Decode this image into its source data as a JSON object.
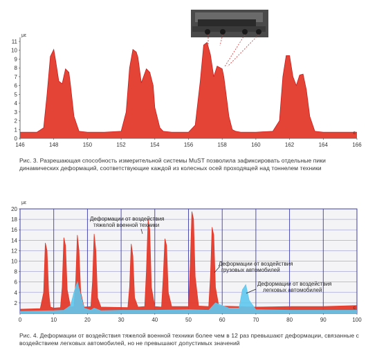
{
  "chart_data": [
    {
      "type": "area",
      "unit": "με",
      "x_unit": "c",
      "ylim": [
        0,
        11
      ],
      "xlim": [
        146,
        166
      ],
      "yticks": [
        0,
        1,
        2,
        3,
        4,
        5,
        6,
        7,
        8,
        9,
        10,
        11
      ],
      "xticks": [
        146,
        148,
        150,
        152,
        154,
        156,
        158,
        160,
        162,
        164,
        166
      ],
      "grid": false,
      "fill_color": "#e23a2b",
      "line_color": "#c81e1e",
      "series": [
        {
          "x": [
            146,
            147,
            147.4,
            147.6,
            147.8,
            148,
            148.1,
            148.3,
            148.5,
            148.7,
            148.9,
            149.0,
            149.2,
            149.5,
            150,
            151,
            152,
            152.3,
            152.5,
            152.7,
            152.9,
            153.0,
            153.2,
            153.5,
            153.7,
            153.9,
            154,
            154.3,
            154.5,
            155,
            156,
            156.4,
            156.7,
            156.9,
            157.1,
            157.3,
            157.5,
            157.7,
            158,
            158.1,
            158.3,
            158.4,
            158.6,
            158.8,
            159.1,
            159.4,
            160,
            161,
            161.4,
            161.6,
            161.8,
            162.0,
            162.2,
            162.4,
            162.6,
            162.8,
            163.0,
            163.2,
            163.5,
            164,
            166
          ],
          "values": [
            0.7,
            0.7,
            1.2,
            5.0,
            9.3,
            10.1,
            9.0,
            6.5,
            6.2,
            7.9,
            7.5,
            6.0,
            2.5,
            0.8,
            0.7,
            0.7,
            0.8,
            3.0,
            8.0,
            10.1,
            9.8,
            9.2,
            6.3,
            7.9,
            7.5,
            6.0,
            3.5,
            1.2,
            0.8,
            0.7,
            0.7,
            1.5,
            6.5,
            10.6,
            10.9,
            9.5,
            7.0,
            8.2,
            7.9,
            7.0,
            4.0,
            2.5,
            1.0,
            0.8,
            0.7,
            0.7,
            0.7,
            0.8,
            2.0,
            7.0,
            9.4,
            9.4,
            7.0,
            6.0,
            7.2,
            7.3,
            5.5,
            2.5,
            0.8,
            0.7,
            0.7
          ]
        }
      ]
    },
    {
      "type": "area",
      "unit": "με",
      "x_unit": "c",
      "ylim": [
        0,
        20
      ],
      "xlim": [
        0,
        100
      ],
      "yticks": [
        2,
        4,
        6,
        8,
        10,
        12,
        14,
        16,
        18,
        20
      ],
      "xticks": [
        0,
        10,
        20,
        30,
        40,
        50,
        60,
        70,
        80,
        90,
        100
      ],
      "grid": true,
      "grid_color": "#3a3aa8",
      "annotations": [
        "Деформации от воздействия тяжелой военной техники",
        "Деформации от воздействия грузовых автомобилей",
        "Деформации от воздействия легковых автомобилей"
      ],
      "series": [
        {
          "color": "#e23a2b",
          "x": [
            0,
            6,
            7,
            7.5,
            8,
            8.5,
            9,
            10,
            12,
            12.5,
            13,
            13.5,
            14,
            15,
            16,
            16.5,
            17,
            17.5,
            18,
            19,
            21,
            21.5,
            22,
            22.5,
            23,
            24,
            32,
            32.5,
            33,
            33.5,
            34,
            35,
            37,
            37.5,
            38,
            38.5,
            39,
            40,
            42,
            42.5,
            43,
            43.5,
            44,
            45,
            50,
            50.5,
            51,
            51.5,
            52,
            53,
            56,
            56.5,
            57,
            57.5,
            58,
            59,
            70,
            80,
            90,
            100
          ],
          "values": [
            0.8,
            0.9,
            4,
            13.5,
            12,
            4,
            1.2,
            1.0,
            1.1,
            5,
            14.5,
            13,
            4.5,
            1.2,
            1.3,
            6,
            15.0,
            12,
            4,
            1.2,
            1.3,
            6,
            15.2,
            12,
            3,
            1.2,
            1.1,
            5,
            13.3,
            11,
            3,
            1.2,
            1.3,
            8,
            18.0,
            16,
            5,
            1.3,
            1.2,
            7,
            14.3,
            13,
            4,
            1.3,
            1.3,
            9,
            19.5,
            18,
            7,
            1.4,
            1.3,
            7,
            16.5,
            15,
            5,
            1.4,
            1.2,
            1.3,
            1.3,
            1.5
          ]
        },
        {
          "color": "#5fc8ee",
          "x": [
            0,
            10,
            13,
            15,
            16,
            17,
            18,
            19,
            21,
            22,
            24,
            30,
            40,
            50,
            56,
            58,
            60,
            62,
            65,
            66,
            67,
            68,
            70,
            80,
            90,
            100
          ],
          "values": [
            0.4,
            0.5,
            0.6,
            1.5,
            4.0,
            6.0,
            3.5,
            1.0,
            0.6,
            1.0,
            0.5,
            0.6,
            0.6,
            0.7,
            0.6,
            2.0,
            1.5,
            1.0,
            1.0,
            4.5,
            5.5,
            2.5,
            0.7,
            0.6,
            0.6,
            0.6
          ]
        }
      ]
    }
  ],
  "captions": {
    "fig3": "Рис. 3. Разрешающая способность измерительной системы MuST позволила зафиксировать отдельные пики динамических деформаций, соответствующие каждой из колесных осей проходящей над тоннелем техники",
    "fig4": "Рис. 4. Деформации от воздействия тяжелой военной техники более чем в 12 раз превышают деформации, связанные с воздействием легковых автомобилей, но не превышают допустимых значений"
  },
  "photo": "military-vehicle-photo"
}
